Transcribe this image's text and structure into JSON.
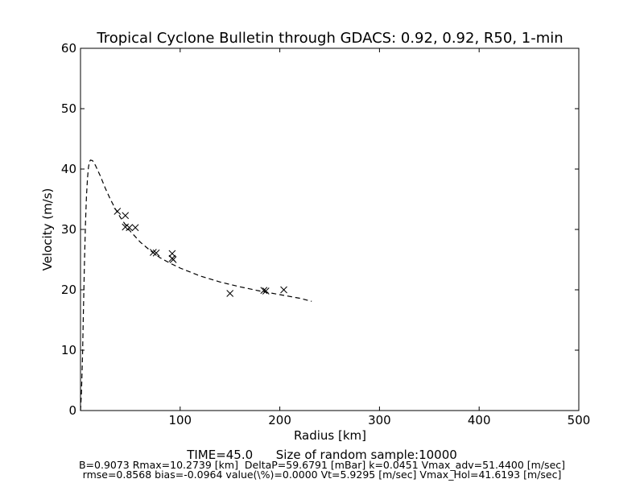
{
  "chart_data": {
    "type": "scatter",
    "title": "Tropical Cyclone Bulletin through GDACS: 0.92, 0.92, R50, 1-min",
    "xlabel": "Radius [km]",
    "ylabel": "Velocity (m/s)",
    "xlim": [
      0,
      500
    ],
    "ylim": [
      0,
      60
    ],
    "xticks": [
      100,
      200,
      300,
      400,
      500
    ],
    "yticks": [
      0,
      10,
      20,
      30,
      40,
      50,
      60
    ],
    "grid": false,
    "legend": "none",
    "series": [
      {
        "style": "markers-x",
        "color": "#000000",
        "points": [
          [
            37,
            33.0
          ],
          [
            45,
            32.3
          ],
          [
            45,
            30.4
          ],
          [
            49,
            30.3
          ],
          [
            55,
            30.3
          ],
          [
            73,
            26.2
          ],
          [
            76,
            26.1
          ],
          [
            92,
            26.0
          ],
          [
            92,
            25.2
          ],
          [
            93,
            25.0
          ],
          [
            150,
            19.4
          ],
          [
            184,
            19.9
          ],
          [
            186,
            19.8
          ],
          [
            204,
            20.0
          ]
        ]
      },
      {
        "style": "dashed-line",
        "color": "#000000",
        "points": [
          [
            0,
            0
          ],
          [
            1,
            3
          ],
          [
            2,
            9
          ],
          [
            3,
            17
          ],
          [
            4,
            25
          ],
          [
            5,
            31
          ],
          [
            6,
            35.5
          ],
          [
            7,
            38.5
          ],
          [
            8,
            40.3
          ],
          [
            9,
            41.2
          ],
          [
            10,
            41.5
          ],
          [
            12,
            41.4
          ],
          [
            15,
            40.6
          ],
          [
            20,
            38.8
          ],
          [
            25,
            36.8
          ],
          [
            30,
            35.0
          ],
          [
            35,
            33.4
          ],
          [
            40,
            32.0
          ],
          [
            45,
            30.8
          ],
          [
            50,
            29.7
          ],
          [
            60,
            27.9
          ],
          [
            70,
            26.5
          ],
          [
            80,
            25.3
          ],
          [
            90,
            24.4
          ],
          [
            100,
            23.6
          ],
          [
            120,
            22.3
          ],
          [
            140,
            21.3
          ],
          [
            160,
            20.5
          ],
          [
            180,
            19.8
          ],
          [
            200,
            19.2
          ],
          [
            220,
            18.6
          ],
          [
            232,
            18.1
          ]
        ]
      }
    ]
  },
  "footer": {
    "line1": "TIME=45.0      Size of random sample:10000",
    "line2": "B=0.9073 Rmax=10.2739 [km]  DeltaP=59.6791 [mBar] k=0.0451 Vmax_adv=51.4400 [m/sec]",
    "line3": "rmse=0.8568 bias=-0.0964 value(\\%)=0.0000 Vt=5.9295 [m/sec] Vmax_Hol=41.6193 [m/sec]"
  }
}
